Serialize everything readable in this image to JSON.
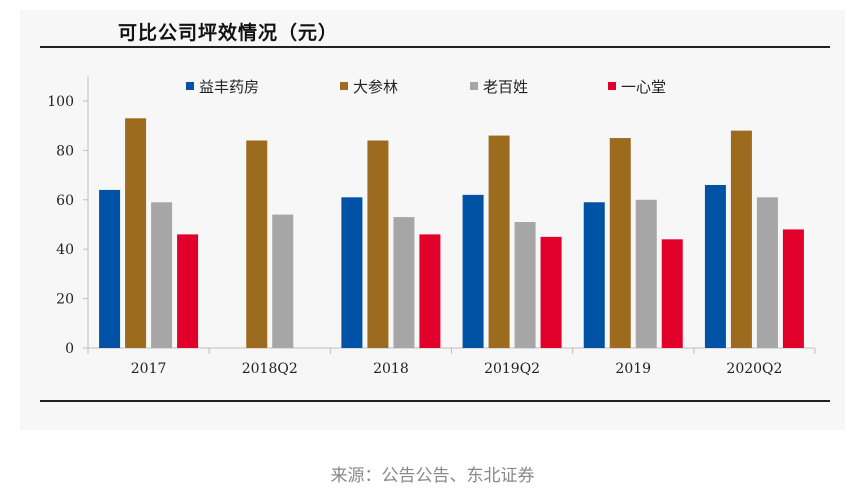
{
  "title": "可比公司坪效情况（元）",
  "source": "来源：公告公告、东北证券",
  "chart_data": {
    "type": "bar",
    "categories": [
      "2017",
      "2018Q2",
      "2018",
      "2019Q2",
      "2019",
      "2020Q2"
    ],
    "series": [
      {
        "name": "益丰药房",
        "color": "#0052a5",
        "values": [
          64,
          null,
          61,
          62,
          59,
          66
        ]
      },
      {
        "name": "大参林",
        "color": "#9c6b1e",
        "values": [
          93,
          84,
          84,
          86,
          85,
          88
        ]
      },
      {
        "name": "老百姓",
        "color": "#a6a6a6",
        "values": [
          59,
          54,
          53,
          51,
          60,
          61
        ]
      },
      {
        "name": "一心堂",
        "color": "#e0002a",
        "values": [
          46,
          null,
          46,
          45,
          44,
          48
        ]
      }
    ],
    "y_ticks": [
      0,
      20,
      40,
      60,
      80,
      100
    ],
    "ylim": [
      0,
      110
    ],
    "xlabel": "",
    "ylabel": "",
    "legend_position": "top",
    "grid": false
  }
}
